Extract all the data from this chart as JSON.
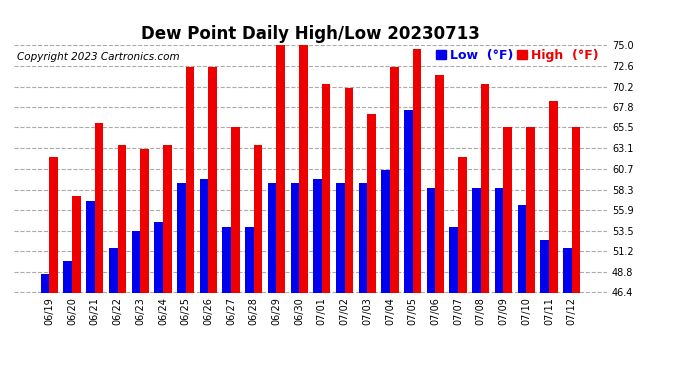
{
  "title": "Dew Point Daily High/Low 20230713",
  "copyright": "Copyright 2023 Cartronics.com",
  "dates": [
    "06/19",
    "06/20",
    "06/21",
    "06/22",
    "06/23",
    "06/24",
    "06/25",
    "06/26",
    "06/27",
    "06/28",
    "06/29",
    "06/30",
    "07/01",
    "07/02",
    "07/03",
    "07/04",
    "07/05",
    "07/06",
    "07/07",
    "07/08",
    "07/09",
    "07/10",
    "07/11",
    "07/12"
  ],
  "high": [
    62.0,
    57.5,
    66.0,
    63.5,
    63.0,
    63.5,
    72.5,
    72.5,
    65.5,
    63.5,
    75.0,
    75.0,
    70.5,
    70.0,
    67.0,
    72.5,
    74.5,
    71.5,
    62.0,
    70.5,
    65.5,
    65.5,
    68.5,
    65.5
  ],
  "low": [
    48.5,
    50.0,
    57.0,
    51.5,
    53.5,
    54.5,
    59.0,
    59.5,
    54.0,
    54.0,
    59.0,
    59.0,
    59.5,
    59.0,
    59.0,
    60.5,
    67.5,
    58.5,
    54.0,
    58.5,
    58.5,
    56.5,
    52.5,
    51.5
  ],
  "high_color": "#ee0000",
  "low_color": "#0000ee",
  "bg_color": "#ffffff",
  "grid_color": "#aaaaaa",
  "ymin": 46.4,
  "ymax": 75.0,
  "yticks": [
    46.4,
    48.8,
    51.2,
    53.5,
    55.9,
    58.3,
    60.7,
    63.1,
    65.5,
    67.8,
    70.2,
    72.6,
    75.0
  ],
  "bar_width": 0.38,
  "legend_low_label": "Low  (°F)",
  "legend_high_label": "High  (°F)",
  "title_fontsize": 12,
  "tick_fontsize": 7,
  "legend_fontsize": 9,
  "copyright_fontsize": 7.5
}
